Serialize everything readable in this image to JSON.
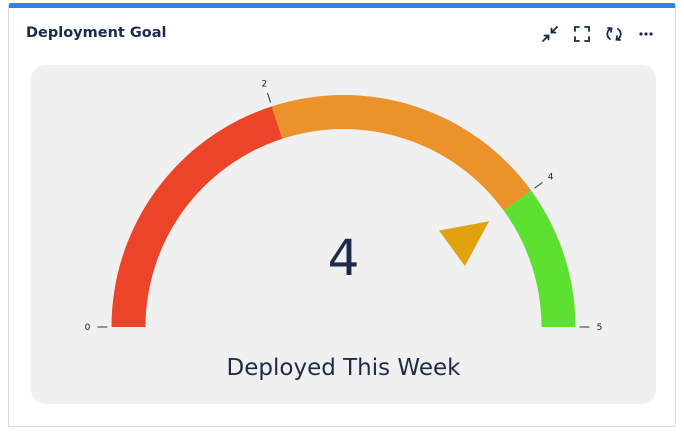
{
  "widget": {
    "title": "Deployment Goal",
    "toolbar": [
      {
        "name": "collapse-icon"
      },
      {
        "name": "fullscreen-icon"
      },
      {
        "name": "refresh-icon"
      },
      {
        "name": "more-options-icon"
      }
    ]
  },
  "gauge": {
    "min": 0,
    "max": 5,
    "value": 4,
    "value_label": "4",
    "caption": "Deployed This Week",
    "ticks": [
      {
        "value": 0,
        "label": "0"
      },
      {
        "value": 2,
        "label": "2"
      },
      {
        "value": 4,
        "label": "4"
      },
      {
        "value": 5,
        "label": "5"
      }
    ],
    "bands": [
      {
        "from": 0,
        "to": 2,
        "color": "#ec4429"
      },
      {
        "from": 2,
        "to": 4,
        "color": "#ec922b"
      },
      {
        "from": 4,
        "to": 5,
        "color": "#5de02f"
      }
    ],
    "pointer_color": "#e0a30f",
    "accent_color": "#2b85e8"
  }
}
